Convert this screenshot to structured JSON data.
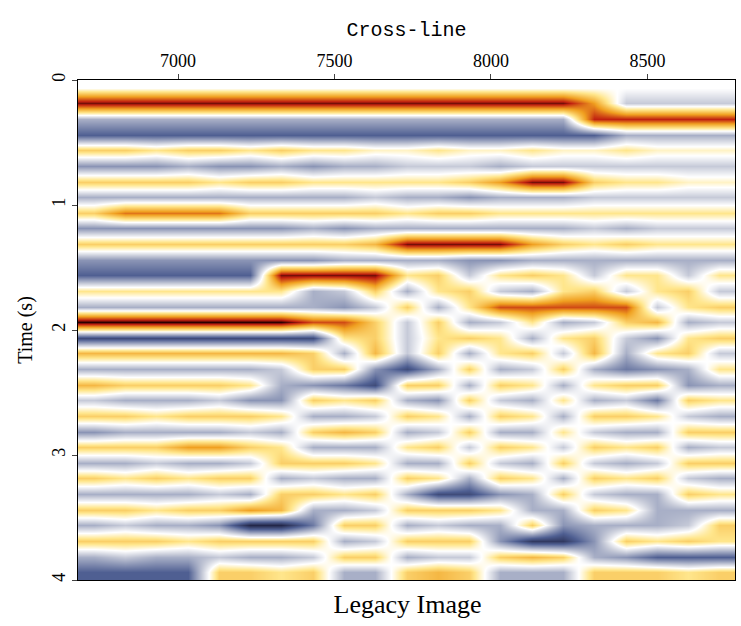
{
  "chart_data": {
    "type": "heatmap",
    "title": "Legacy Image",
    "x_label": "Cross-line",
    "y_label": "Time (s)",
    "x": [
      6730,
      6830,
      6930,
      7030,
      7130,
      7230,
      7330,
      7430,
      7530,
      7630,
      7730,
      7830,
      7930,
      8030,
      8130,
      8230,
      8330,
      8430,
      8530,
      8630,
      8730
    ],
    "y": [
      0.0625,
      0.1875,
      0.3125,
      0.4375,
      0.5625,
      0.6875,
      0.8125,
      0.9375,
      1.0625,
      1.1875,
      1.3125,
      1.4375,
      1.5625,
      1.6875,
      1.8125,
      1.9375,
      2.0625,
      2.1875,
      2.3125,
      2.4375,
      2.5625,
      2.6875,
      2.8125,
      2.9375,
      3.0625,
      3.1875,
      3.3125,
      3.4375,
      3.5625,
      3.6875,
      3.8125,
      3.9375
    ],
    "z": [
      [
        0,
        0,
        0,
        0,
        0,
        0,
        0,
        0,
        0,
        0,
        0,
        0,
        0,
        0,
        0,
        0,
        0,
        0,
        0,
        0,
        0
      ],
      [
        0.9,
        0.9,
        0.9,
        0.9,
        0.9,
        0.9,
        0.9,
        0.9,
        0.9,
        0.9,
        0.9,
        0.9,
        0.9,
        0.9,
        0.9,
        0.9,
        0.5,
        -0.2,
        -0.2,
        -0.2,
        -0.2
      ],
      [
        -0.3,
        -0.3,
        -0.3,
        -0.3,
        -0.3,
        -0.3,
        -0.3,
        -0.3,
        -0.3,
        -0.3,
        -0.3,
        -0.3,
        -0.3,
        -0.3,
        -0.3,
        -0.3,
        0.8,
        0.8,
        0.8,
        0.8,
        0.8
      ],
      [
        -0.6,
        -0.6,
        -0.6,
        -0.6,
        -0.6,
        -0.6,
        -0.6,
        -0.6,
        -0.6,
        -0.6,
        -0.6,
        -0.6,
        -0.6,
        -0.6,
        -0.6,
        -0.6,
        -0.6,
        -0.3,
        -0.3,
        -0.3,
        -0.3
      ],
      [
        0.3,
        0.3,
        0.2,
        0.3,
        0.3,
        0.2,
        0.3,
        0.2,
        0.2,
        0.1,
        0.1,
        0.2,
        0.1,
        0.1,
        0.2,
        0.1,
        0.1,
        0.2,
        0.1,
        0.1,
        0.1
      ],
      [
        -0.4,
        -0.4,
        -0.4,
        -0.3,
        -0.4,
        -0.4,
        -0.3,
        -0.4,
        -0.3,
        -0.3,
        -0.2,
        -0.2,
        -0.2,
        -0.3,
        -0.2,
        -0.2,
        -0.2,
        -0.2,
        -0.2,
        -0.2,
        -0.2
      ],
      [
        0.3,
        0.3,
        0.3,
        0.3,
        0.2,
        0.3,
        0.3,
        0.2,
        0.2,
        0.2,
        0.2,
        0.2,
        0.3,
        0.5,
        0.9,
        0.9,
        0.3,
        0.2,
        0.2,
        0.1,
        0.1
      ],
      [
        -0.3,
        -0.3,
        -0.3,
        -0.3,
        -0.3,
        -0.3,
        -0.3,
        -0.3,
        -0.3,
        -0.2,
        -0.3,
        -0.3,
        -0.4,
        -0.3,
        -0.3,
        -0.3,
        -0.2,
        -0.2,
        -0.2,
        -0.2,
        -0.2
      ],
      [
        0.3,
        0.6,
        0.6,
        0.6,
        0.6,
        0.3,
        0.3,
        0.3,
        0.3,
        0.3,
        0.2,
        0.3,
        0.3,
        0.2,
        0.2,
        0.2,
        0.2,
        0.2,
        0.2,
        0.2,
        0.2
      ],
      [
        -0.4,
        -0.4,
        -0.4,
        -0.4,
        -0.4,
        -0.4,
        -0.4,
        -0.3,
        -0.4,
        -0.3,
        -0.3,
        -0.3,
        -0.3,
        -0.3,
        -0.3,
        -0.3,
        -0.2,
        -0.3,
        -0.2,
        -0.2,
        -0.2
      ],
      [
        0.3,
        0.3,
        0.3,
        0.3,
        0.3,
        0.3,
        0.3,
        0.3,
        0.3,
        0.4,
        0.9,
        0.9,
        0.9,
        0.9,
        0.5,
        0.3,
        0.2,
        0.3,
        0.2,
        0.2,
        0.2
      ],
      [
        -0.4,
        -0.4,
        -0.4,
        -0.4,
        -0.4,
        -0.4,
        -0.4,
        -0.4,
        -0.3,
        -0.3,
        -0.3,
        -0.3,
        -0.4,
        -0.4,
        -0.3,
        -0.3,
        -0.3,
        -0.3,
        -0.3,
        -0.3,
        -0.3
      ],
      [
        -0.6,
        -0.6,
        -0.6,
        -0.6,
        -0.6,
        -0.6,
        0.9,
        0.9,
        0.9,
        0.9,
        0.2,
        0.3,
        -0.2,
        0.2,
        0.3,
        0.2,
        -0.2,
        0.2,
        0.2,
        -0.2,
        0.2
      ],
      [
        0.2,
        0.2,
        0.2,
        0.2,
        0.2,
        0.2,
        0.2,
        -0.3,
        -0.2,
        0.3,
        -0.3,
        0.2,
        0.3,
        -0.2,
        -0.3,
        0.2,
        0.3,
        -0.2,
        0.2,
        0.3,
        -0.2
      ],
      [
        -0.3,
        -0.3,
        -0.3,
        -0.3,
        -0.3,
        -0.3,
        -0.3,
        -0.3,
        -0.4,
        -0.2,
        0.3,
        -0.3,
        0.2,
        0.7,
        0.7,
        0.7,
        0.7,
        0.7,
        -0.2,
        0.2,
        0.3
      ],
      [
        1.0,
        1.0,
        1.0,
        1.0,
        1.0,
        1.0,
        1.0,
        0.7,
        0.7,
        0.3,
        -0.2,
        0.3,
        -0.3,
        -0.2,
        0.2,
        -0.3,
        -0.2,
        0.3,
        0.4,
        -0.3,
        -0.2
      ],
      [
        -0.7,
        -0.7,
        -0.7,
        -0.7,
        -0.7,
        -0.7,
        -0.7,
        -0.7,
        0.2,
        0.3,
        -0.2,
        0.2,
        0.3,
        0.2,
        -0.3,
        0.2,
        0.3,
        -0.2,
        -0.4,
        0.2,
        0.3
      ],
      [
        0.4,
        0.4,
        0.4,
        0.4,
        0.4,
        0.4,
        0.4,
        0.3,
        -0.3,
        0.4,
        -0.2,
        0.3,
        -0.3,
        0.2,
        0.3,
        -0.2,
        0.4,
        -0.3,
        0.2,
        0.3,
        -0.2
      ],
      [
        -0.3,
        -0.3,
        -0.3,
        -0.3,
        -0.3,
        -0.3,
        -0.2,
        0.3,
        0.3,
        -0.4,
        -0.7,
        -0.3,
        0.3,
        -0.3,
        -0.2,
        0.3,
        -0.3,
        -0.5,
        -0.4,
        -0.3,
        0.2
      ],
      [
        0.4,
        0.3,
        0.3,
        0.3,
        0.3,
        0.2,
        -0.3,
        -0.4,
        -0.5,
        -0.7,
        0.3,
        0.3,
        -0.3,
        0.3,
        0.2,
        -0.3,
        0.2,
        0.3,
        0.3,
        -0.4,
        -0.3
      ],
      [
        -0.2,
        -0.3,
        -0.3,
        -0.3,
        -0.2,
        -0.4,
        -0.4,
        0.3,
        0.2,
        0.3,
        -0.3,
        -0.4,
        0.3,
        -0.2,
        -0.3,
        0.2,
        -0.3,
        -0.2,
        -0.5,
        0.3,
        0.2
      ],
      [
        0.3,
        0.3,
        0.2,
        0.3,
        0.3,
        0.3,
        0.2,
        -0.3,
        -0.3,
        -0.2,
        0.3,
        0.2,
        -0.3,
        0.3,
        0.2,
        -0.3,
        0.3,
        0.3,
        0.2,
        -0.2,
        -0.3
      ],
      [
        -0.4,
        -0.3,
        -0.3,
        -0.3,
        -0.3,
        -0.2,
        -0.3,
        0.3,
        0.4,
        0.3,
        -0.3,
        -0.2,
        0.3,
        -0.3,
        -0.3,
        0.2,
        -0.2,
        -0.3,
        -0.3,
        0.3,
        0.3
      ],
      [
        0.3,
        0.3,
        0.3,
        0.5,
        0.5,
        0.3,
        0.2,
        -0.3,
        -0.3,
        -0.3,
        0.2,
        0.3,
        -0.2,
        0.3,
        0.2,
        -0.2,
        0.3,
        0.2,
        0.3,
        -0.3,
        -0.2
      ],
      [
        -0.3,
        -0.3,
        -0.2,
        -0.3,
        -0.3,
        -0.2,
        0.3,
        0.3,
        0.3,
        0.2,
        -0.3,
        -0.3,
        0.3,
        -0.2,
        -0.3,
        0.3,
        -0.2,
        -0.3,
        -0.2,
        0.3,
        0.3
      ],
      [
        0.3,
        0.2,
        0.3,
        0.2,
        0.3,
        0.3,
        -0.3,
        -0.2,
        -0.3,
        -0.3,
        0.3,
        0.2,
        -0.3,
        0.3,
        0.2,
        -0.3,
        0.3,
        0.2,
        0.3,
        -0.2,
        -0.3
      ],
      [
        -0.3,
        -0.3,
        -0.3,
        -0.3,
        -0.2,
        -0.3,
        0.3,
        0.3,
        0.2,
        0.3,
        -0.3,
        -0.7,
        -0.7,
        -0.4,
        -0.3,
        0.3,
        -0.2,
        -0.3,
        -0.3,
        0.3,
        0.2
      ],
      [
        0.3,
        0.3,
        0.2,
        0.3,
        0.3,
        0.5,
        0.4,
        -0.3,
        -0.3,
        -0.2,
        0.3,
        0.3,
        0.3,
        0.2,
        -0.3,
        -0.3,
        0.3,
        0.2,
        -0.3,
        -0.3,
        -0.3
      ],
      [
        -0.3,
        -0.2,
        -0.3,
        -0.3,
        -0.4,
        -0.9,
        -0.9,
        -0.5,
        0.3,
        0.3,
        -0.3,
        -0.2,
        -0.3,
        -0.3,
        0.3,
        -0.4,
        -0.3,
        -0.3,
        -0.3,
        -0.2,
        0.3
      ],
      [
        0.3,
        0.3,
        0.3,
        0.2,
        0.3,
        0.3,
        0.3,
        0.3,
        -0.3,
        -0.2,
        0.3,
        0.3,
        0.3,
        -0.4,
        -0.8,
        -0.8,
        -0.4,
        0.3,
        0.2,
        0.3,
        0.2
      ],
      [
        -0.3,
        -0.2,
        -0.3,
        -0.3,
        -0.2,
        -0.3,
        -0.3,
        -0.2,
        0.3,
        0.3,
        -0.3,
        -0.2,
        -0.2,
        0.3,
        0.4,
        0.3,
        -0.3,
        -0.4,
        -0.6,
        -0.6,
        -0.6
      ],
      [
        -0.6,
        -0.6,
        -0.6,
        -0.6,
        0.3,
        0.3,
        0.2,
        0.3,
        -0.3,
        -0.3,
        0.3,
        0.4,
        0.3,
        -0.3,
        -0.3,
        -0.3,
        0.3,
        0.3,
        0.3,
        0.2,
        0.3
      ]
    ],
    "zlim": [
      -1,
      1
    ],
    "xlim": [
      6680,
      8780
    ],
    "ylim": [
      4,
      0
    ],
    "xticks": [
      7000,
      7500,
      8000,
      8500
    ],
    "yticks": [
      0,
      1,
      2,
      3,
      4
    ]
  }
}
